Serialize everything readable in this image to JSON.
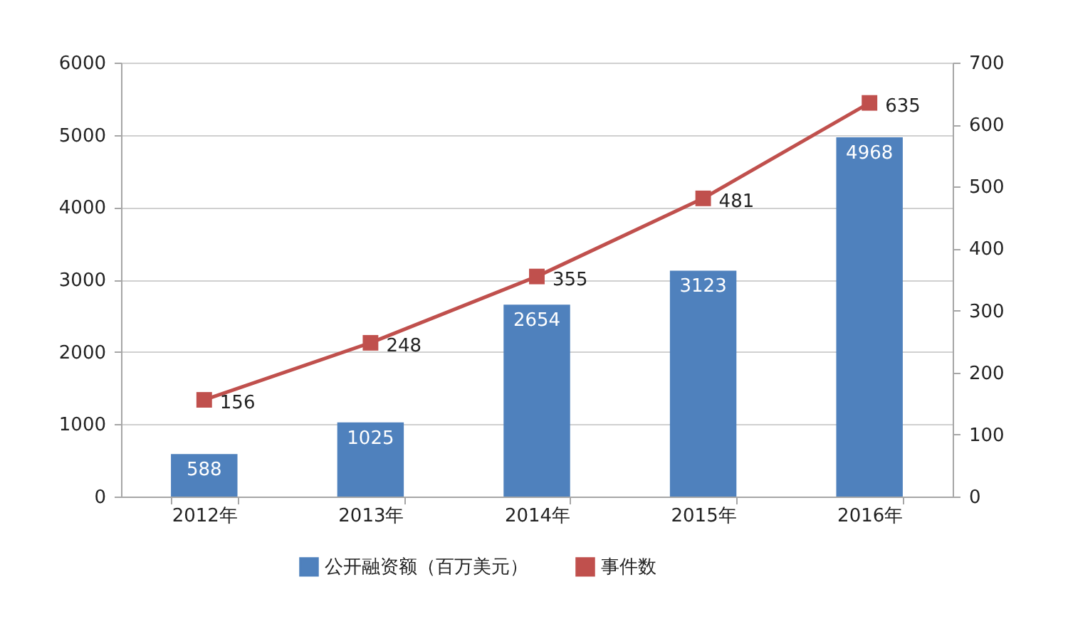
{
  "chart_data": {
    "type": "bar",
    "categories": [
      "2012年",
      "2013年",
      "2014年",
      "2015年",
      "2016年"
    ],
    "series": [
      {
        "name": "公开融资额（百万美元）",
        "color": "#4f81bd",
        "values": [
          588,
          1025,
          2654,
          3123,
          4968
        ]
      },
      {
        "name": "事件数",
        "type": "line",
        "axis": "y2",
        "color": "#c0504d",
        "values": [
          156,
          248,
          355,
          481,
          635
        ]
      }
    ],
    "ylim": [
      0,
      6000
    ],
    "yticks": [
      0,
      1000,
      2000,
      3000,
      4000,
      5000,
      6000
    ],
    "y2lim": [
      0,
      700
    ],
    "y2ticks": [
      0,
      100,
      200,
      300,
      400,
      500,
      600,
      700
    ],
    "grid": "y",
    "legend": "bottom",
    "marker": "square",
    "line_style": "solid",
    "data_labels": true
  }
}
